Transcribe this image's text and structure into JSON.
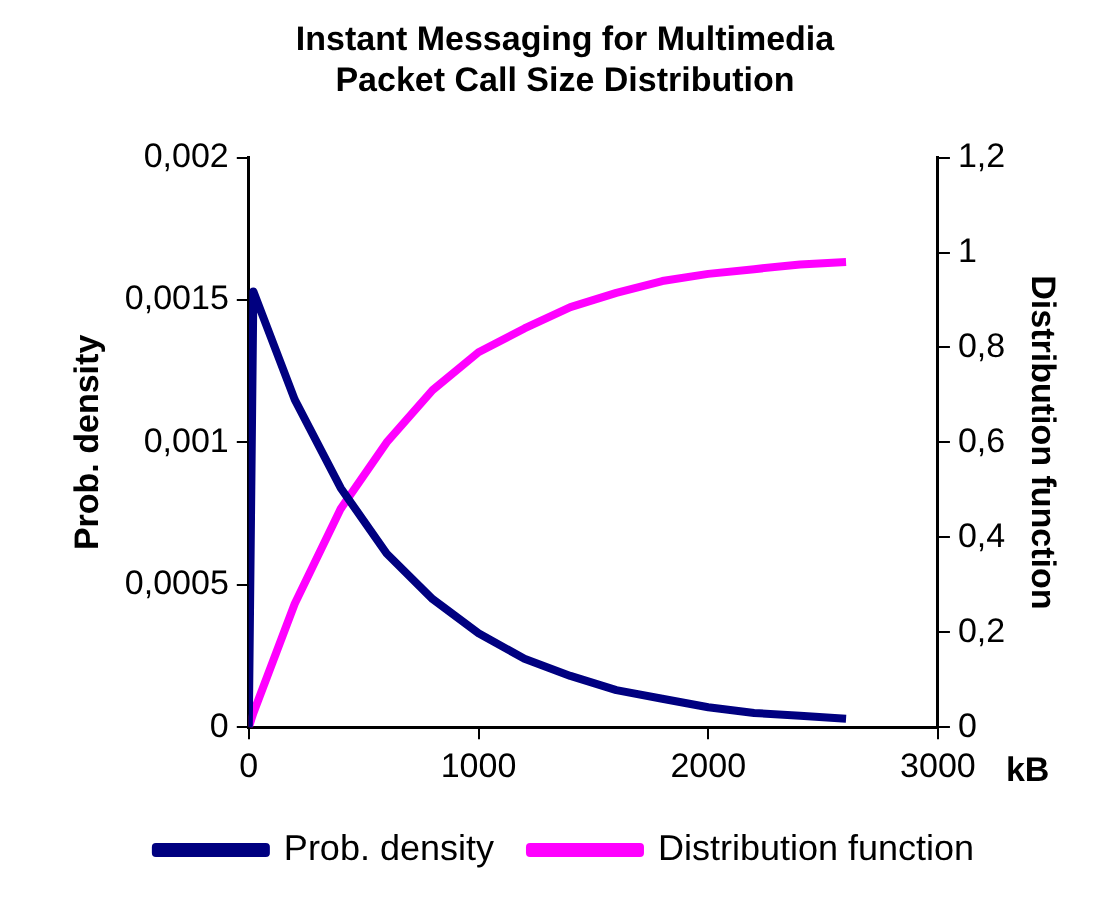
{
  "chart_data": {
    "type": "line",
    "title": "Instant Messaging for Multimedia\nPacket Call Size Distribution",
    "xlabel": "kB",
    "ylabel": "Prob. density",
    "y2label": "Distribution function",
    "x": [
      0,
      20,
      200,
      400,
      600,
      800,
      1000,
      1200,
      1400,
      1600,
      1800,
      2000,
      2200,
      2400,
      2600
    ],
    "series": [
      {
        "name": "Prob. density",
        "color": "#000080",
        "values": [
          0,
          0.00153,
          0.00115,
          0.00084,
          0.00061,
          0.00045,
          0.00033,
          0.00024,
          0.00018,
          0.00013,
          0.0001,
          7e-05,
          5e-05,
          4e-05,
          3e-05
        ]
      },
      {
        "name": "Distribution function",
        "color": "#ff00ff",
        "axis": "y2",
        "values": [
          0,
          0.03,
          0.26,
          0.46,
          0.6,
          0.71,
          0.79,
          0.84,
          0.885,
          0.915,
          0.94,
          0.955,
          0.965,
          0.975,
          0.98
        ]
      }
    ],
    "xlim": [
      0,
      3000
    ],
    "xticks": [
      0,
      1000,
      2000,
      3000
    ],
    "ylim": [
      0,
      0.002
    ],
    "yticks": [
      0,
      {
        "value": 0.0005,
        "label": "0,0005"
      },
      {
        "value": 0.001,
        "label": "0,001"
      },
      {
        "value": 0.0015,
        "label": "0,0015"
      },
      {
        "value": 0.002,
        "label": "0,002"
      }
    ],
    "y2lim": [
      0,
      1.2
    ],
    "y2ticks": [
      0,
      {
        "value": 0.2,
        "label": "0,2"
      },
      {
        "value": 0.4,
        "label": "0,4"
      },
      {
        "value": 0.6,
        "label": "0,6"
      },
      {
        "value": 0.8,
        "label": "0,8"
      },
      1,
      {
        "value": 1.2,
        "label": "1,2"
      }
    ],
    "grid": false,
    "legend": "bottom",
    "marker": "none",
    "line_style": "solid"
  }
}
